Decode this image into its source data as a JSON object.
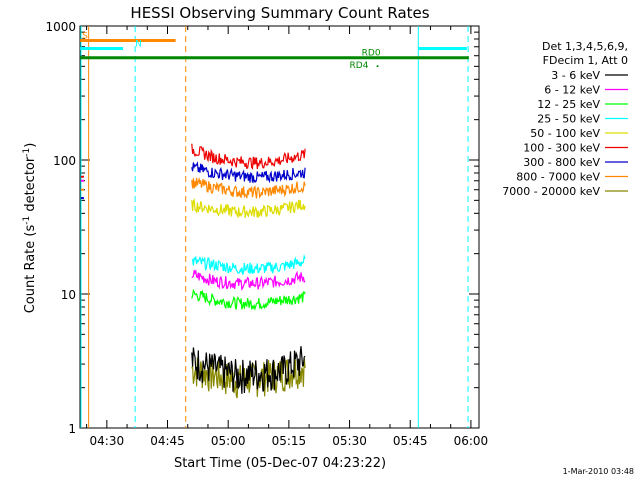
{
  "chart_data": {
    "type": "line",
    "title": "HESSI Observing Summary Count Rates",
    "xlabel": "Start Time (05-Dec-07 04:23:22)",
    "ylabel_main": "Count Rate (s",
    "ylabel_sup1": "-1",
    "ylabel_mid": " detector",
    "ylabel_sup2": "-1",
    "ylabel_end": ")",
    "footer": "1-Mar-2010 03:48",
    "y_scale": "log",
    "ylim": [
      1,
      1000
    ],
    "xlim": [
      "04:23:22",
      "06:02:00"
    ],
    "x_tick_labels": [
      "04:30",
      "04:45",
      "05:00",
      "05:15",
      "05:30",
      "05:45",
      "06:00"
    ],
    "x_tick_minutes": [
      270,
      285,
      300,
      315,
      330,
      345,
      360
    ],
    "y_tick_labels": [
      "1",
      "10",
      "100",
      "1000"
    ],
    "y_tick_values": [
      1,
      10,
      100,
      1000
    ],
    "legend": {
      "header": [
        "Det 1,3,4,5,6,9,",
        "FDecim 1, Att 0"
      ],
      "entries": [
        {
          "label": "3 - 6 keV",
          "color": "#000000"
        },
        {
          "label": "6 - 12 keV",
          "color": "#ff00ff"
        },
        {
          "label": "12 - 25 keV",
          "color": "#00ff00"
        },
        {
          "label": "25 - 50 keV",
          "color": "#00ffff"
        },
        {
          "label": "50 - 100 keV",
          "color": "#dddd00"
        },
        {
          "label": "100 - 300 keV",
          "color": "#ee0000"
        },
        {
          "label": "300 - 800 keV",
          "color": "#0000cc"
        },
        {
          "label": "800 - 7000 keV",
          "color": "#ff8800"
        },
        {
          "label": "7000 - 20000 keV",
          "color": "#888800"
        }
      ]
    },
    "series": [
      {
        "name": "3 - 6 keV",
        "color": "#000000",
        "x_start": 291,
        "x_end": 319,
        "values": [
          3.2,
          2.8,
          2.5,
          2.6,
          2.7,
          3.3
        ]
      },
      {
        "name": "6 - 12 keV",
        "color": "#ff00ff",
        "x_start": 291,
        "x_end": 319,
        "values": [
          14,
          12.5,
          12,
          12,
          12.5,
          13.5
        ]
      },
      {
        "name": "12 - 25 keV",
        "color": "#00ff00",
        "x_start": 291,
        "x_end": 319,
        "values": [
          10,
          9,
          8.5,
          8.5,
          9,
          9.5
        ]
      },
      {
        "name": "25 - 50 keV",
        "color": "#00ffff",
        "x_start": 291,
        "x_end": 319,
        "values": [
          17.5,
          16.5,
          15.5,
          15.5,
          16,
          17.5
        ]
      },
      {
        "name": "50 - 100 keV",
        "color": "#dddd00",
        "x_start": 291,
        "x_end": 319,
        "values": [
          46,
          43,
          41,
          41,
          43,
          47
        ]
      },
      {
        "name": "100 - 300 keV",
        "color": "#ee0000",
        "x_start": 291,
        "x_end": 319,
        "values": [
          120,
          104,
          97,
          95,
          100,
          110
        ]
      },
      {
        "name": "300 - 800 keV",
        "color": "#0000cc",
        "x_start": 291,
        "x_end": 319,
        "values": [
          88,
          80,
          76,
          74,
          77,
          81
        ]
      },
      {
        "name": "800 - 7000 keV",
        "color": "#ff8800",
        "x_start": 291,
        "x_end": 319,
        "values": [
          68,
          62,
          58,
          57,
          60,
          64
        ]
      },
      {
        "name": "7000 - 20000 keV",
        "color": "#888800",
        "x_start": 291,
        "x_end": 319,
        "values": [
          2.8,
          2.5,
          2.3,
          2.4,
          2.6,
          2.9
        ]
      }
    ],
    "early_points": [
      {
        "x": 263.6,
        "values": [
          75,
          52,
          60,
          70
        ]
      }
    ],
    "flag_bars": [
      {
        "label": "S",
        "color": "#ff8800",
        "x_start": 263.4,
        "x_end": 287,
        "y": 780
      },
      {
        "label": "N",
        "color": "#00ffff",
        "x_start": 263.4,
        "x_end": 274,
        "y": 680
      },
      {
        "label": "",
        "color": "#00ffff",
        "x_start": 347,
        "x_end": 359,
        "y": 680
      },
      {
        "label": "RD0",
        "color": "#008800",
        "x_start": 263.4,
        "x_end": 359.5,
        "y": 580
      }
    ],
    "flag_texts": [
      {
        "text": "RD4",
        "color": "#008800",
        "x": 330,
        "y": 510
      }
    ],
    "vlines": [
      {
        "x": 265.5,
        "color": "#ff8800",
        "style": "solid"
      },
      {
        "x": 277,
        "color": "#00ffff",
        "style": "dashed"
      },
      {
        "x": 289.5,
        "color": "#ff8800",
        "style": "dashed"
      },
      {
        "x": 347,
        "color": "#00ffff",
        "style": "solid"
      },
      {
        "x": 359.3,
        "color": "#00ffff",
        "style": "dashed"
      },
      {
        "x": 263.6,
        "color": "#00ffff",
        "style": "solid"
      }
    ]
  }
}
